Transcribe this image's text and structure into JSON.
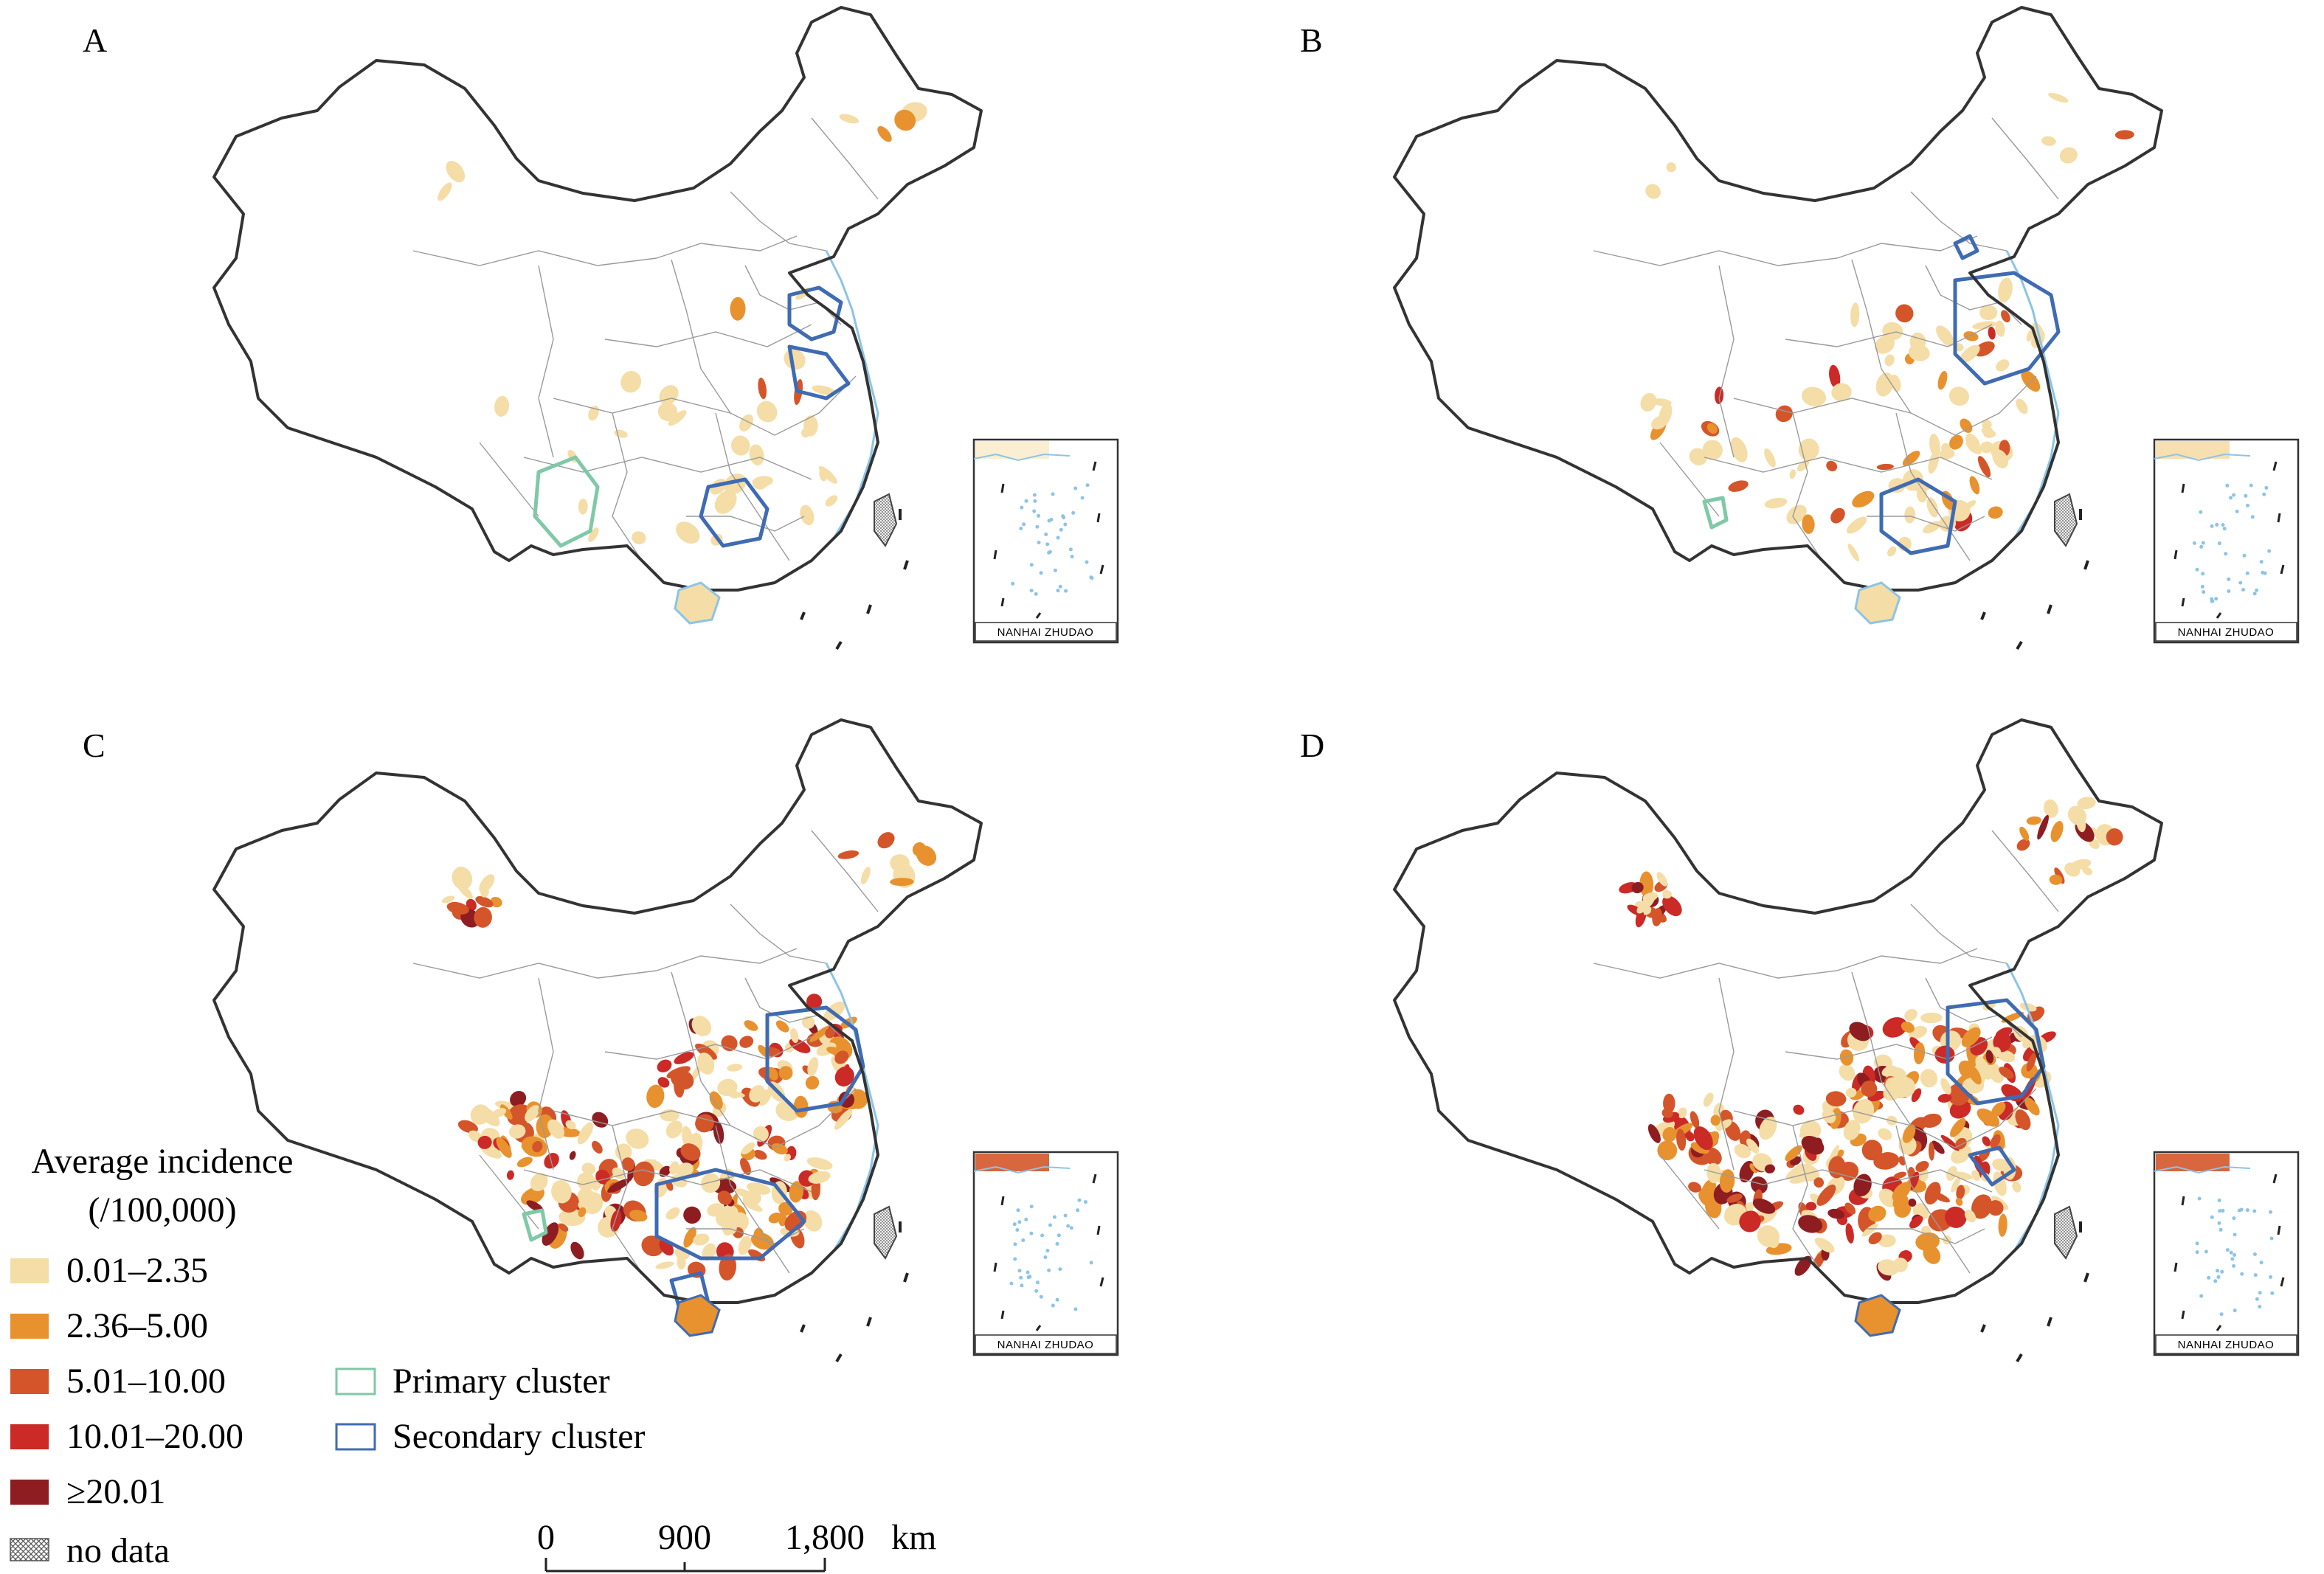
{
  "colors": {
    "c1": "#F5DDA7",
    "c2": "#E8922F",
    "c3": "#D4552A",
    "c4": "#CB2A26",
    "c5": "#8E1D21",
    "primary": "#7FC9A7",
    "secondary": "#3F6BB3",
    "coast": "#8CC4E8",
    "border": "#333333",
    "inner": "#9A9A9A"
  },
  "panels": [
    {
      "letter": "A",
      "level": 1
    },
    {
      "letter": "B",
      "level": 2
    },
    {
      "letter": "C",
      "level": 3
    },
    {
      "letter": "D",
      "level": 4
    }
  ],
  "inset_label": "NANHAI ZHUDAO",
  "legend": {
    "title_line1": "Average incidence",
    "title_line2": "(/100,000)",
    "classes": [
      {
        "label": "0.01–2.35",
        "color": "#F5DDA7"
      },
      {
        "label": "2.36–5.00",
        "color": "#E8922F"
      },
      {
        "label": "5.01–10.00",
        "color": "#D4552A"
      },
      {
        "label": "10.01–20.00",
        "color": "#CB2A26"
      },
      {
        "label": "≥20.01",
        "color": "#8E1D21"
      },
      {
        "label": "no data",
        "pattern": "crosshatch"
      }
    ],
    "clusters": [
      {
        "label": "Primary cluster",
        "color": "#7FC9A7"
      },
      {
        "label": "Secondary cluster",
        "color": "#3F6BB3"
      }
    ]
  },
  "scale": {
    "ticks": [
      "0",
      "900",
      "1,800"
    ],
    "unit": "km"
  }
}
